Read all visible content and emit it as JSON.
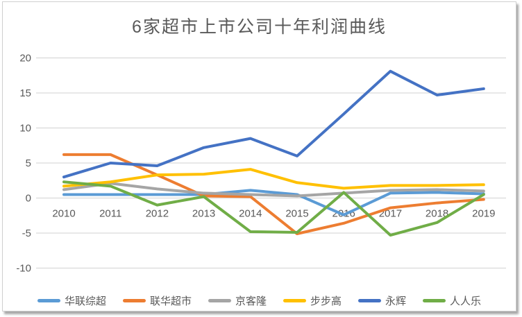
{
  "chart_data": {
    "type": "line",
    "title": "6家超市上市公司十年利润曲线",
    "categories": [
      "2010",
      "2011",
      "2012",
      "2013",
      "2014",
      "2015",
      "2016",
      "2017",
      "2018",
      "2019"
    ],
    "series": [
      {
        "name": "华联综超",
        "color": "#5B9BD5",
        "values": [
          0.5,
          0.5,
          0.5,
          0.5,
          1.1,
          0.5,
          -2.4,
          0.7,
          0.8,
          0.6
        ]
      },
      {
        "name": "联华超市",
        "color": "#ED7D31",
        "values": [
          6.2,
          6.2,
          3.3,
          0.3,
          0.2,
          -5.1,
          -3.6,
          -1.4,
          -0.7,
          -0.2
        ]
      },
      {
        "name": "京客隆",
        "color": "#A5A5A5",
        "values": [
          1.2,
          2.1,
          1.3,
          0.7,
          0.5,
          0.3,
          0.7,
          1.1,
          1.2,
          1.0
        ]
      },
      {
        "name": "步步高",
        "color": "#FFC000",
        "values": [
          1.7,
          2.3,
          3.3,
          3.4,
          4.1,
          2.2,
          1.4,
          1.8,
          1.8,
          1.9
        ]
      },
      {
        "name": "永辉",
        "color": "#4472C4",
        "values": [
          3.0,
          5.0,
          4.6,
          7.2,
          8.5,
          6.0,
          12.0,
          18.1,
          14.7,
          15.6
        ]
      },
      {
        "name": "人人乐",
        "color": "#70AD47",
        "values": [
          2.3,
          1.7,
          -1.0,
          0.2,
          -4.8,
          -4.9,
          0.8,
          -5.3,
          -3.5,
          0.5
        ]
      }
    ],
    "xlabel": "",
    "ylabel": "",
    "ylim": [
      -10,
      20
    ],
    "yticks": [
      20,
      15,
      10,
      5,
      0,
      -5,
      -10
    ],
    "grid": true,
    "gridline_color": "#D9D9D9",
    "text_color": "#595959",
    "legend_position": "bottom"
  }
}
